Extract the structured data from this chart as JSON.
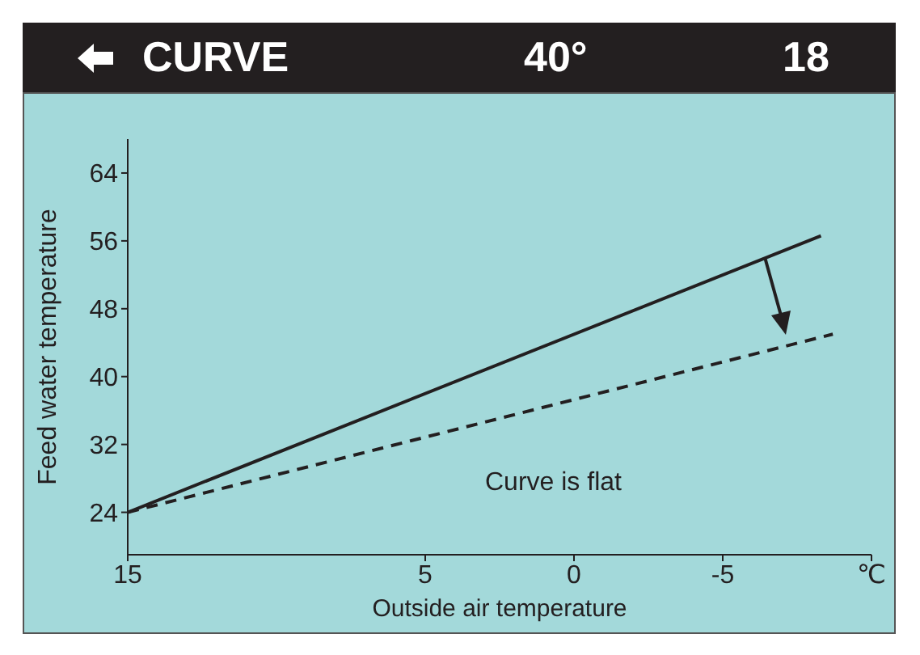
{
  "chart_data": {
    "type": "line",
    "title": "CURVE",
    "xlabel": "Outside air temperature",
    "ylabel": "Feed water temperature",
    "annotations": [
      "40°",
      "18",
      "Curve is flat"
    ],
    "series": [
      {
        "x": [
          15,
          -8.3
        ],
        "values": [
          24,
          56.6
        ],
        "color": "#231f20",
        "line_style": "solid"
      },
      {
        "x": [
          15,
          -8.7
        ],
        "values": [
          24,
          45
        ],
        "color": "#231f20",
        "line_style": "dashed"
      }
    ],
    "xlim": [
      15,
      -10
    ],
    "xticks": [
      15,
      5,
      0,
      -5,
      {
        "value": -10,
        "label": "℃"
      }
    ],
    "ylim": [
      19,
      68
    ],
    "yticks": [
      24,
      32,
      40,
      48,
      56,
      64
    ],
    "grid": false,
    "legend": false,
    "marker": "none"
  }
}
